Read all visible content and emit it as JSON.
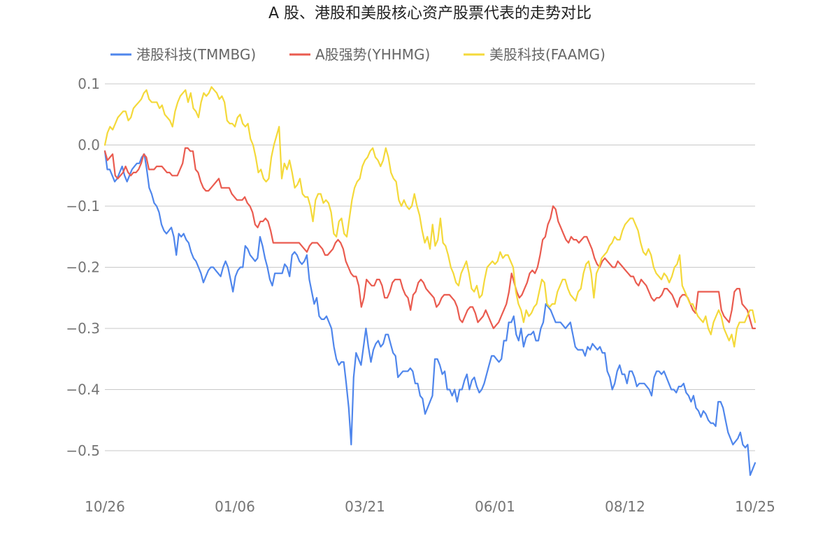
{
  "chart_data": {
    "type": "line",
    "title": "A 股、港股和美股核心资产股票代表的走势对比",
    "xlabel": "",
    "ylabel": "",
    "ylim": [
      -0.55,
      0.1
    ],
    "yticks": [
      0.1,
      0.0,
      -0.1,
      -0.2,
      -0.3,
      -0.4,
      -0.5
    ],
    "ytick_labels": [
      "0.1",
      "0.0",
      "−0.1",
      "−0.2",
      "−0.3",
      "−0.4",
      "−0.5"
    ],
    "xticks": [
      "10/26",
      "01/06",
      "03/21",
      "06/01",
      "08/12",
      "10/25"
    ],
    "grid": true,
    "legend_position": "top",
    "series": [
      {
        "name": "港股科技(TMMBG)",
        "color": "#4f86ec",
        "values": [
          -0.01,
          -0.04,
          -0.04,
          -0.05,
          -0.06,
          -0.055,
          -0.045,
          -0.035,
          -0.05,
          -0.06,
          -0.05,
          -0.04,
          -0.035,
          -0.03,
          -0.03,
          -0.02,
          -0.015,
          -0.04,
          -0.07,
          -0.08,
          -0.095,
          -0.1,
          -0.11,
          -0.13,
          -0.14,
          -0.145,
          -0.14,
          -0.135,
          -0.15,
          -0.18,
          -0.145,
          -0.15,
          -0.145,
          -0.155,
          -0.16,
          -0.175,
          -0.185,
          -0.19,
          -0.2,
          -0.21,
          -0.225,
          -0.215,
          -0.205,
          -0.2,
          -0.2,
          -0.205,
          -0.21,
          -0.215,
          -0.2,
          -0.19,
          -0.2,
          -0.22,
          -0.24,
          -0.215,
          -0.205,
          -0.2,
          -0.2,
          -0.165,
          -0.17,
          -0.18,
          -0.185,
          -0.19,
          -0.185,
          -0.15,
          -0.165,
          -0.185,
          -0.2,
          -0.22,
          -0.23,
          -0.21,
          -0.21,
          -0.21,
          -0.21,
          -0.195,
          -0.2,
          -0.215,
          -0.18,
          -0.175,
          -0.18,
          -0.19,
          -0.195,
          -0.19,
          -0.18,
          -0.22,
          -0.24,
          -0.26,
          -0.25,
          -0.28,
          -0.285,
          -0.285,
          -0.28,
          -0.29,
          -0.3,
          -0.33,
          -0.35,
          -0.36,
          -0.355,
          -0.355,
          -0.39,
          -0.43,
          -0.49,
          -0.38,
          -0.34,
          -0.35,
          -0.36,
          -0.33,
          -0.3,
          -0.33,
          -0.355,
          -0.335,
          -0.325,
          -0.32,
          -0.33,
          -0.325,
          -0.31,
          -0.31,
          -0.325,
          -0.34,
          -0.345,
          -0.38,
          -0.375,
          -0.37,
          -0.37,
          -0.37,
          -0.365,
          -0.37,
          -0.39,
          -0.39,
          -0.41,
          -0.415,
          -0.44,
          -0.43,
          -0.42,
          -0.41,
          -0.35,
          -0.35,
          -0.36,
          -0.375,
          -0.37,
          -0.4,
          -0.4,
          -0.41,
          -0.4,
          -0.42,
          -0.4,
          -0.4,
          -0.385,
          -0.375,
          -0.4,
          -0.385,
          -0.38,
          -0.395,
          -0.405,
          -0.4,
          -0.39,
          -0.375,
          -0.36,
          -0.345,
          -0.345,
          -0.35,
          -0.355,
          -0.35,
          -0.32,
          -0.32,
          -0.29,
          -0.29,
          -0.28,
          -0.31,
          -0.32,
          -0.3,
          -0.33,
          -0.315,
          -0.31,
          -0.31,
          -0.305,
          -0.32,
          -0.32,
          -0.3,
          -0.29,
          -0.26,
          -0.265,
          -0.27,
          -0.28,
          -0.29,
          -0.29,
          -0.29,
          -0.295,
          -0.3,
          -0.295,
          -0.29,
          -0.31,
          -0.33,
          -0.335,
          -0.335,
          -0.335,
          -0.345,
          -0.33,
          -0.335,
          -0.325,
          -0.33,
          -0.335,
          -0.33,
          -0.34,
          -0.34,
          -0.37,
          -0.38,
          -0.4,
          -0.39,
          -0.37,
          -0.36,
          -0.375,
          -0.375,
          -0.39,
          -0.37,
          -0.37,
          -0.38,
          -0.395,
          -0.39,
          -0.39,
          -0.39,
          -0.395,
          -0.4,
          -0.41,
          -0.38,
          -0.37,
          -0.37,
          -0.375,
          -0.37,
          -0.38,
          -0.39,
          -0.4,
          -0.4,
          -0.405,
          -0.395,
          -0.395,
          -0.39,
          -0.405,
          -0.41,
          -0.42,
          -0.41,
          -0.43,
          -0.435,
          -0.445,
          -0.435,
          -0.44,
          -0.45,
          -0.455,
          -0.455,
          -0.46,
          -0.42,
          -0.42,
          -0.43,
          -0.45,
          -0.47,
          -0.48,
          -0.49,
          -0.485,
          -0.48,
          -0.47,
          -0.49,
          -0.495,
          -0.49,
          -0.54,
          -0.53,
          -0.52
        ]
      },
      {
        "name": "A股强势(YHHMG)",
        "color": "#ea5b4f",
        "values": [
          -0.01,
          -0.025,
          -0.02,
          -0.015,
          -0.05,
          -0.055,
          -0.05,
          -0.045,
          -0.035,
          -0.045,
          -0.05,
          -0.045,
          -0.045,
          -0.04,
          -0.03,
          -0.015,
          -0.02,
          -0.04,
          -0.04,
          -0.04,
          -0.035,
          -0.035,
          -0.035,
          -0.04,
          -0.045,
          -0.045,
          -0.05,
          -0.05,
          -0.05,
          -0.04,
          -0.03,
          -0.005,
          -0.005,
          -0.01,
          -0.01,
          -0.04,
          -0.045,
          -0.06,
          -0.07,
          -0.075,
          -0.075,
          -0.07,
          -0.065,
          -0.06,
          -0.055,
          -0.07,
          -0.07,
          -0.07,
          -0.07,
          -0.08,
          -0.085,
          -0.09,
          -0.09,
          -0.09,
          -0.085,
          -0.095,
          -0.1,
          -0.11,
          -0.13,
          -0.135,
          -0.125,
          -0.125,
          -0.12,
          -0.125,
          -0.14,
          -0.16,
          -0.16,
          -0.16,
          -0.16,
          -0.16,
          -0.16,
          -0.16,
          -0.16,
          -0.16,
          -0.16,
          -0.16,
          -0.165,
          -0.17,
          -0.175,
          -0.165,
          -0.16,
          -0.16,
          -0.16,
          -0.165,
          -0.17,
          -0.18,
          -0.18,
          -0.175,
          -0.17,
          -0.16,
          -0.155,
          -0.16,
          -0.17,
          -0.19,
          -0.2,
          -0.21,
          -0.215,
          -0.215,
          -0.23,
          -0.265,
          -0.25,
          -0.22,
          -0.225,
          -0.23,
          -0.23,
          -0.22,
          -0.22,
          -0.23,
          -0.25,
          -0.25,
          -0.24,
          -0.225,
          -0.22,
          -0.22,
          -0.22,
          -0.235,
          -0.245,
          -0.25,
          -0.27,
          -0.245,
          -0.24,
          -0.225,
          -0.22,
          -0.225,
          -0.235,
          -0.24,
          -0.245,
          -0.25,
          -0.265,
          -0.26,
          -0.25,
          -0.245,
          -0.245,
          -0.245,
          -0.25,
          -0.255,
          -0.265,
          -0.285,
          -0.29,
          -0.28,
          -0.27,
          -0.265,
          -0.265,
          -0.275,
          -0.29,
          -0.285,
          -0.28,
          -0.27,
          -0.28,
          -0.29,
          -0.3,
          -0.295,
          -0.29,
          -0.28,
          -0.27,
          -0.26,
          -0.24,
          -0.21,
          -0.225,
          -0.24,
          -0.25,
          -0.245,
          -0.235,
          -0.225,
          -0.21,
          -0.205,
          -0.21,
          -0.2,
          -0.18,
          -0.155,
          -0.15,
          -0.13,
          -0.12,
          -0.1,
          -0.105,
          -0.125,
          -0.135,
          -0.145,
          -0.155,
          -0.16,
          -0.15,
          -0.155,
          -0.155,
          -0.16,
          -0.155,
          -0.15,
          -0.15,
          -0.16,
          -0.17,
          -0.185,
          -0.195,
          -0.2,
          -0.19,
          -0.185,
          -0.19,
          -0.195,
          -0.2,
          -0.2,
          -0.19,
          -0.195,
          -0.2,
          -0.205,
          -0.21,
          -0.215,
          -0.215,
          -0.225,
          -0.23,
          -0.22,
          -0.225,
          -0.23,
          -0.24,
          -0.25,
          -0.255,
          -0.25,
          -0.25,
          -0.245,
          -0.235,
          -0.235,
          -0.24,
          -0.245,
          -0.255,
          -0.265,
          -0.25,
          -0.245,
          -0.245,
          -0.25,
          -0.26,
          -0.27,
          -0.275,
          -0.24,
          -0.24,
          -0.24,
          -0.24,
          -0.24,
          -0.24,
          -0.24,
          -0.24,
          -0.24,
          -0.27,
          -0.28,
          -0.285,
          -0.29,
          -0.27,
          -0.24,
          -0.235,
          -0.235,
          -0.26,
          -0.265,
          -0.27,
          -0.285,
          -0.3,
          -0.3
        ]
      },
      {
        "name": "美股科技(FAAMG)",
        "color": "#f4d93a",
        "values": [
          0.0,
          0.02,
          0.03,
          0.025,
          0.035,
          0.045,
          0.05,
          0.055,
          0.055,
          0.04,
          0.045,
          0.06,
          0.065,
          0.07,
          0.075,
          0.085,
          0.09,
          0.075,
          0.07,
          0.07,
          0.07,
          0.06,
          0.065,
          0.05,
          0.045,
          0.04,
          0.03,
          0.055,
          0.07,
          0.08,
          0.085,
          0.09,
          0.07,
          0.085,
          0.06,
          0.055,
          0.045,
          0.07,
          0.085,
          0.08,
          0.085,
          0.095,
          0.09,
          0.085,
          0.075,
          0.08,
          0.07,
          0.04,
          0.035,
          0.035,
          0.03,
          0.045,
          0.05,
          0.035,
          0.03,
          0.035,
          0.01,
          0.0,
          -0.02,
          -0.045,
          -0.04,
          -0.055,
          -0.06,
          -0.055,
          -0.02,
          0.0,
          0.015,
          0.03,
          -0.055,
          -0.03,
          -0.04,
          -0.025,
          -0.045,
          -0.07,
          -0.065,
          -0.055,
          -0.08,
          -0.085,
          -0.085,
          -0.1,
          -0.125,
          -0.09,
          -0.08,
          -0.08,
          -0.095,
          -0.09,
          -0.095,
          -0.11,
          -0.145,
          -0.15,
          -0.125,
          -0.12,
          -0.145,
          -0.15,
          -0.12,
          -0.09,
          -0.07,
          -0.06,
          -0.055,
          -0.035,
          -0.025,
          -0.02,
          -0.01,
          -0.005,
          -0.02,
          -0.025,
          -0.035,
          -0.025,
          -0.005,
          -0.02,
          -0.045,
          -0.055,
          -0.06,
          -0.09,
          -0.1,
          -0.09,
          -0.1,
          -0.105,
          -0.1,
          -0.08,
          -0.1,
          -0.115,
          -0.14,
          -0.16,
          -0.15,
          -0.17,
          -0.13,
          -0.165,
          -0.155,
          -0.12,
          -0.16,
          -0.165,
          -0.18,
          -0.2,
          -0.21,
          -0.225,
          -0.23,
          -0.21,
          -0.2,
          -0.19,
          -0.21,
          -0.235,
          -0.24,
          -0.23,
          -0.25,
          -0.245,
          -0.22,
          -0.2,
          -0.195,
          -0.19,
          -0.195,
          -0.19,
          -0.175,
          -0.185,
          -0.18,
          -0.18,
          -0.19,
          -0.2,
          -0.24,
          -0.26,
          -0.27,
          -0.29,
          -0.27,
          -0.28,
          -0.275,
          -0.265,
          -0.26,
          -0.24,
          -0.22,
          -0.225,
          -0.26,
          -0.265,
          -0.26,
          -0.26,
          -0.24,
          -0.23,
          -0.22,
          -0.22,
          -0.235,
          -0.245,
          -0.25,
          -0.255,
          -0.24,
          -0.235,
          -0.21,
          -0.195,
          -0.19,
          -0.21,
          -0.25,
          -0.21,
          -0.2,
          -0.185,
          -0.18,
          -0.175,
          -0.165,
          -0.16,
          -0.15,
          -0.155,
          -0.155,
          -0.14,
          -0.13,
          -0.125,
          -0.12,
          -0.12,
          -0.13,
          -0.14,
          -0.16,
          -0.175,
          -0.18,
          -0.17,
          -0.18,
          -0.2,
          -0.21,
          -0.215,
          -0.22,
          -0.21,
          -0.215,
          -0.225,
          -0.215,
          -0.2,
          -0.195,
          -0.18,
          -0.23,
          -0.24,
          -0.25,
          -0.26,
          -0.26,
          -0.27,
          -0.28,
          -0.285,
          -0.29,
          -0.28,
          -0.3,
          -0.31,
          -0.29,
          -0.28,
          -0.27,
          -0.28,
          -0.3,
          -0.31,
          -0.32,
          -0.31,
          -0.33,
          -0.3,
          -0.29,
          -0.29,
          -0.29,
          -0.28,
          -0.27,
          -0.27,
          -0.29
        ]
      }
    ]
  }
}
